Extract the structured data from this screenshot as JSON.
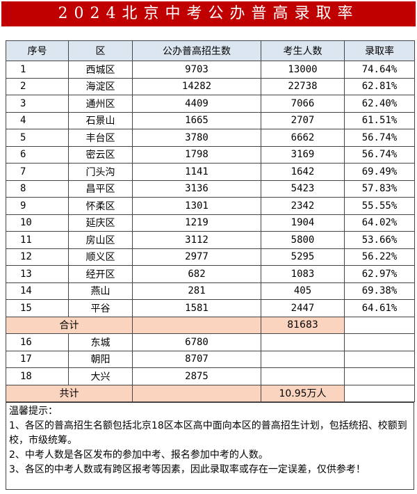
{
  "title": "2024北京中考公办普高录取率",
  "table": {
    "header": [
      "序号",
      "区",
      "公办普高招生数",
      "考生人数",
      "录取率"
    ],
    "rows": [
      [
        1,
        "西城区",
        9703,
        13000,
        "74.64%"
      ],
      [
        2,
        "海淀区",
        14282,
        22738,
        "62.81%"
      ],
      [
        3,
        "通州区",
        4409,
        7066,
        "62.40%"
      ],
      [
        4,
        "石景山",
        1665,
        2707,
        "61.51%"
      ],
      [
        5,
        "丰台区",
        3780,
        6662,
        "56.74%"
      ],
      [
        6,
        "密云区",
        1798,
        3169,
        "56.74%"
      ],
      [
        7,
        "门头沟",
        1141,
        1642,
        "69.49%"
      ],
      [
        8,
        "昌平区",
        3136,
        5423,
        "57.83%"
      ],
      [
        9,
        "怀柔区",
        1301,
        2342,
        "55.55%"
      ],
      [
        10,
        "延庆区",
        1219,
        1904,
        "64.02%"
      ],
      [
        11,
        "房山区",
        3112,
        5800,
        "53.66%"
      ],
      [
        12,
        "顺义区",
        2977,
        5295,
        "56.22%"
      ],
      [
        13,
        "经开区",
        682,
        1083,
        "62.97%"
      ],
      [
        14,
        "燕山",
        281,
        405,
        "69.38%"
      ],
      [
        15,
        "平谷",
        1581,
        2447,
        "64.61%"
      ]
    ],
    "subtotal": {
      "label": "合计",
      "value": 81683
    },
    "extra_rows": [
      [
        16,
        "东城",
        6780
      ],
      [
        17,
        "朝阳",
        8707
      ],
      [
        18,
        "大兴",
        2875
      ]
    ],
    "total": {
      "label": "共计",
      "value": "10.95万人"
    }
  },
  "notes": {
    "title": "温馨提示：",
    "lines": [
      "1、各区的普高招生名额包括北京18区本区高中面向本区的普高招生计划，包括统招、校额到校，市级统筹。",
      "2、中考人数是各区发布的参加中考、报名参加中考的人数。",
      "3、各区的中考人数或有跨区报考等因素，因此录取率或存在一定误差，仅供参考！"
    ]
  }
}
